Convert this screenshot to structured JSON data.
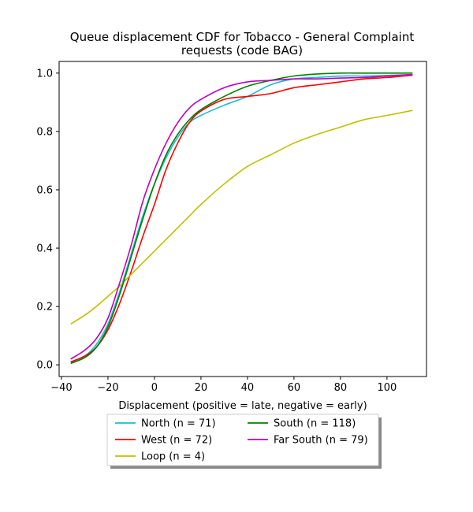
{
  "chart_data": {
    "type": "line",
    "title": "Queue displacement CDF for Tobacco - General Complaint",
    "subtitle": "requests (code BAG)",
    "xlabel": "Displacement (positive = late, negative = early)",
    "ylabel": "",
    "xlim": [
      -41,
      117
    ],
    "ylim": [
      -0.04,
      1.04
    ],
    "xticks": [
      -40,
      -20,
      0,
      20,
      40,
      60,
      80,
      100
    ],
    "yticks": [
      0.0,
      0.2,
      0.4,
      0.6,
      0.8,
      1.0
    ],
    "xtick_labels": [
      "−40",
      "−20",
      "0",
      "20",
      "40",
      "60",
      "80",
      "100"
    ],
    "ytick_labels": [
      "0.0",
      "0.2",
      "0.4",
      "0.6",
      "0.8",
      "1.0"
    ],
    "grid": false,
    "legend_position": "below-center",
    "x": [
      -36,
      -30,
      -25,
      -20,
      -15,
      -10,
      -5,
      0,
      5,
      10,
      15,
      20,
      30,
      40,
      50,
      60,
      70,
      80,
      90,
      100,
      111
    ],
    "series": [
      {
        "name": "North (n = 71)",
        "color": "#17becf",
        "values": [
          0.01,
          0.03,
          0.07,
          0.14,
          0.25,
          0.38,
          0.51,
          0.62,
          0.71,
          0.78,
          0.83,
          0.855,
          0.89,
          0.92,
          0.96,
          0.98,
          0.985,
          0.99,
          0.99,
          0.992,
          0.995
        ]
      },
      {
        "name": "West (n = 72)",
        "color": "#ff0000",
        "values": [
          0.01,
          0.03,
          0.06,
          0.12,
          0.21,
          0.32,
          0.44,
          0.55,
          0.67,
          0.76,
          0.83,
          0.87,
          0.91,
          0.92,
          0.93,
          0.95,
          0.96,
          0.97,
          0.98,
          0.985,
          0.993
        ]
      },
      {
        "name": "Loop (n = 4)",
        "color": "#bfbf00",
        "values": [
          0.14,
          0.17,
          0.2,
          0.235,
          0.27,
          0.31,
          0.35,
          0.39,
          0.43,
          0.47,
          0.51,
          0.55,
          0.62,
          0.68,
          0.72,
          0.76,
          0.79,
          0.815,
          0.84,
          0.855,
          0.872
        ]
      },
      {
        "name": "South (n = 118)",
        "color": "#008000",
        "values": [
          0.005,
          0.025,
          0.06,
          0.13,
          0.24,
          0.37,
          0.5,
          0.62,
          0.72,
          0.79,
          0.84,
          0.875,
          0.92,
          0.955,
          0.975,
          0.99,
          0.997,
          1.0,
          1.0,
          1.0,
          1.0
        ]
      },
      {
        "name": "Far South (n = 79)",
        "color": "#bf00bf",
        "values": [
          0.02,
          0.05,
          0.09,
          0.16,
          0.28,
          0.41,
          0.56,
          0.67,
          0.76,
          0.83,
          0.88,
          0.91,
          0.95,
          0.97,
          0.975,
          0.98,
          0.98,
          0.983,
          0.985,
          0.99,
          0.995
        ]
      }
    ]
  }
}
